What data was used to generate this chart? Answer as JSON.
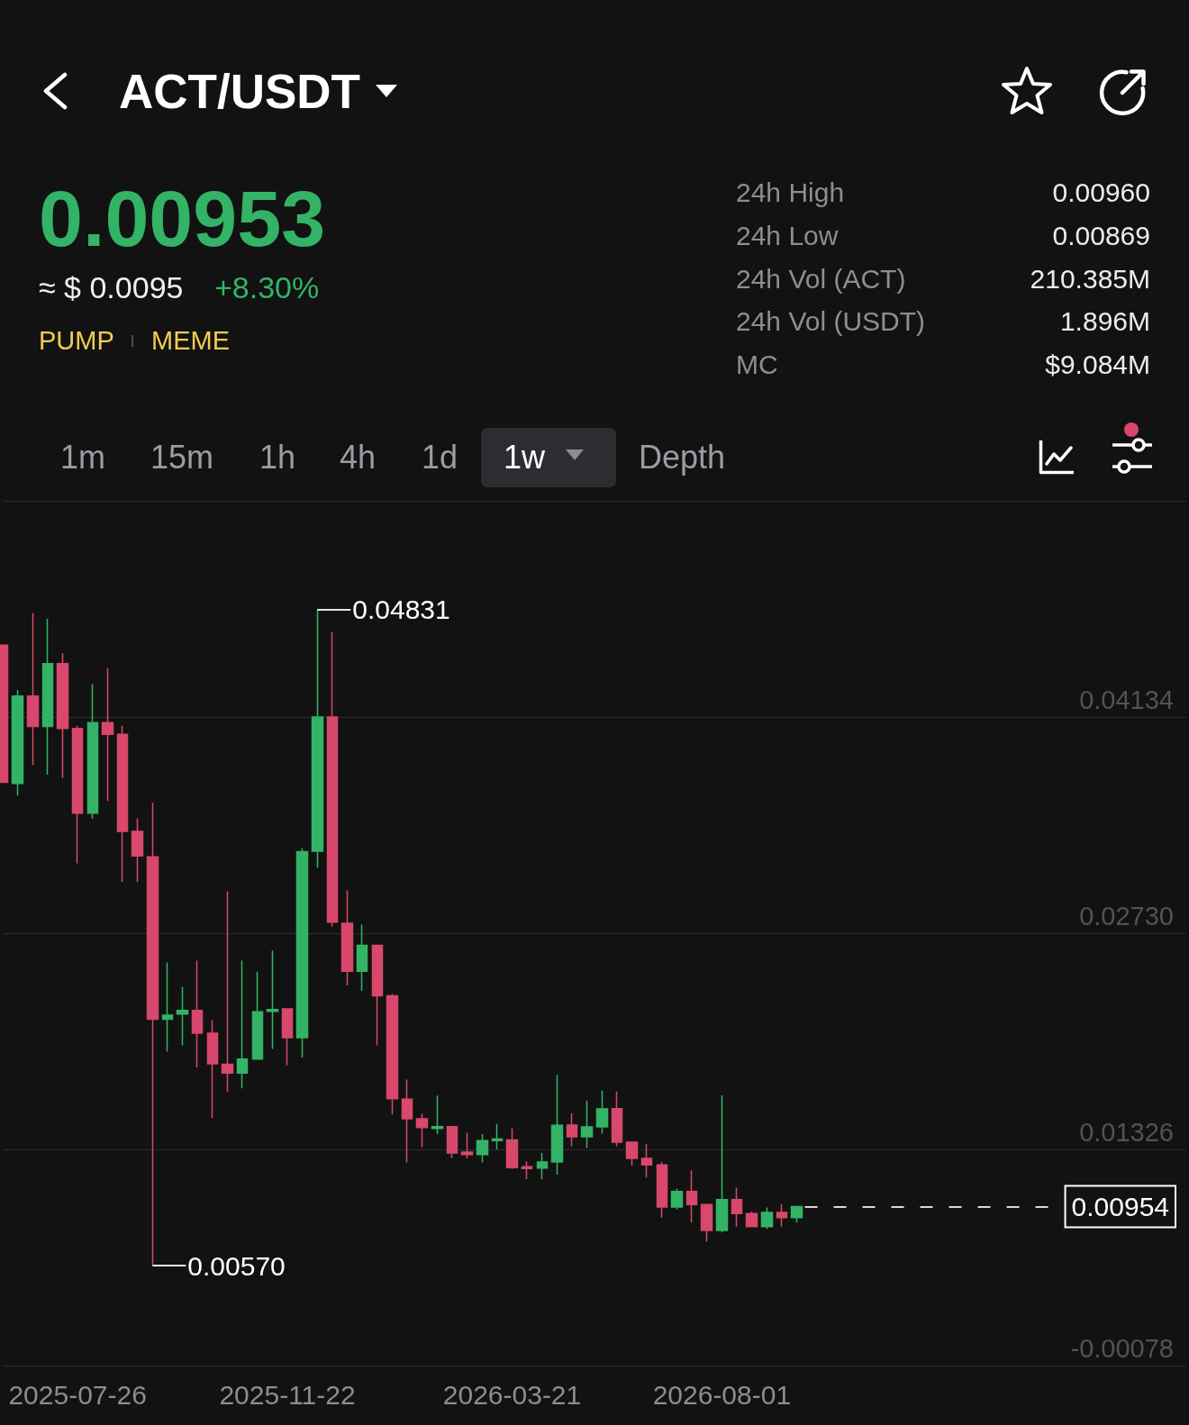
{
  "chart_data": {
    "type": "candlestick",
    "title": "ACT/USDT",
    "annotations": [
      "0.00953",
      "≈ $ 0.0095",
      "+8.30%",
      "PUMP",
      "MEME",
      "24h High",
      "0.00960",
      "24h Low",
      "0.00869",
      "24h Vol (ACT)",
      "210.385M",
      "24h Vol (USDT)",
      "1.896M",
      "MC",
      "$9.084M",
      "1m",
      "15m",
      "1h",
      "4h",
      "1d",
      "1w",
      "Depth",
      "0.04831",
      "0.00570"
    ],
    "categories": [
      null,
      null,
      null,
      null,
      null,
      "2025-07-26",
      null,
      null,
      null,
      null,
      null,
      null,
      null,
      null,
      null,
      null,
      null,
      null,
      null,
      "2025-11-22",
      null,
      null,
      null,
      null,
      null,
      null,
      null,
      null,
      null,
      null,
      null,
      null,
      null,
      null,
      "2026-03-21",
      null,
      null,
      null,
      null,
      null,
      null,
      null,
      null,
      null,
      null,
      null,
      null,
      null,
      "2026-08-01",
      null,
      null,
      null,
      null,
      null,
      null,
      null,
      null,
      null,
      null,
      null,
      null,
      null,
      null,
      null,
      null,
      null,
      null,
      null,
      null,
      null,
      null,
      null,
      null,
      null,
      null,
      null,
      null,
      null,
      null,
      null
    ],
    "ohlc": [
      [
        0.046,
        0.046,
        0.0371,
        0.0371
      ],
      [
        0.03703,
        0.0431,
        0.03623,
        0.0427
      ],
      [
        0.0427,
        0.04809,
        0.03822,
        0.04072
      ],
      [
        0.04072,
        0.04772,
        0.0376,
        0.0448
      ],
      [
        0.0448,
        0.04548,
        0.03737,
        0.0406
      ],
      [
        0.0406,
        0.04077,
        0.03184,
        0.0351
      ],
      [
        0.0351,
        0.04347,
        0.03473,
        0.04097
      ],
      [
        0.04097,
        0.04452,
        0.03589,
        0.04021
      ],
      [
        0.04021,
        0.04077,
        0.03062,
        0.03391
      ],
      [
        0.03391,
        0.03476,
        0.03062,
        0.03232
      ],
      [
        0.03226,
        0.03578,
        0.0057,
        0.02171
      ],
      [
        0.02171,
        0.0254,
        0.01961,
        0.02197
      ],
      [
        0.02205,
        0.02381,
        0.02001,
        0.02228
      ],
      [
        0.02228,
        0.02551,
        0.01859,
        0.0208
      ],
      [
        0.0208,
        0.02166,
        0.0153,
        0.01882
      ],
      [
        0.01879,
        0.03,
        0.017,
        0.01822
      ],
      [
        0.01822,
        0.02551,
        0.01723,
        0.01913
      ],
      [
        0.01913,
        0.0248,
        0.01913,
        0.02219
      ],
      [
        0.02222,
        0.02617,
        0.01978,
        0.02234
      ],
      [
        0.02239,
        0.02239,
        0.01871,
        0.02052
      ],
      [
        0.02052,
        0.03283,
        0.01922,
        0.0326
      ],
      [
        0.03263,
        0.04831,
        0.03155,
        0.04134
      ],
      [
        0.04134,
        0.04687,
        0.02773,
        0.02801
      ],
      [
        0.02795,
        0.03008,
        0.0239,
        0.02483
      ],
      [
        0.02483,
        0.02787,
        0.02356,
        0.02651
      ],
      [
        0.02651,
        0.02651,
        0.02001,
        0.02324
      ],
      [
        0.02324,
        0.02333,
        0.01553,
        0.01655
      ],
      [
        0.01652,
        0.0178,
        0.01241,
        0.01525
      ],
      [
        0.01525,
        0.01559,
        0.0134,
        0.01468
      ],
      [
        0.01462,
        0.01675,
        0.01425,
        0.01473
      ],
      [
        0.01473,
        0.01473,
        0.01269,
        0.01303
      ],
      [
        0.01309,
        0.01434,
        0.01269,
        0.01292
      ],
      [
        0.01292,
        0.01425,
        0.01241,
        0.01383
      ],
      [
        0.01383,
        0.01491,
        0.01326,
        0.01394
      ],
      [
        0.01388,
        0.01462,
        0.01199,
        0.01207
      ],
      [
        0.01213,
        0.01249,
        0.01133,
        0.01201
      ],
      [
        0.01205,
        0.01303,
        0.01131,
        0.01244
      ],
      [
        0.01244,
        0.0181,
        0.01162,
        0.01482
      ],
      [
        0.01484,
        0.0156,
        0.01346,
        0.01408
      ],
      [
        0.01408,
        0.01644,
        0.01336,
        0.01472
      ],
      [
        0.01472,
        0.01708,
        0.01429,
        0.01589
      ],
      [
        0.01591,
        0.01702,
        0.01346,
        0.01373
      ],
      [
        0.01373,
        0.01373,
        0.01221,
        0.01268
      ],
      [
        0.01268,
        0.01361,
        0.01143,
        0.01225
      ],
      [
        0.01225,
        0.01244,
        0.00883,
        0.00952
      ],
      [
        0.00952,
        0.01072,
        0.00936,
        0.01053
      ],
      [
        0.01053,
        0.0119,
        0.0085,
        0.00967
      ],
      [
        0.00967,
        0.00967,
        0.00727,
        0.008
      ],
      [
        0.008,
        0.01677,
        0.00786,
        0.01
      ],
      [
        0.01,
        0.01078,
        0.00825,
        0.00909
      ],
      [
        0.00909,
        0.00922,
        0.00825,
        0.00825
      ],
      [
        0.00825,
        0.00948,
        0.00809,
        0.00917
      ],
      [
        0.00917,
        0.00971,
        0.00825,
        0.00883
      ],
      [
        0.00883,
        0.00954,
        0.0085,
        0.00954
      ],
      null,
      null,
      null,
      null,
      null,
      null,
      null,
      null,
      null,
      null,
      null,
      null,
      null,
      null,
      null,
      null,
      null,
      null,
      null,
      null,
      null,
      null,
      null,
      null,
      null,
      null
    ],
    "colors": [
      "#d8476c",
      "#33b366",
      "#d8476c",
      "#33b366",
      "#d8476c",
      "#d8476c",
      "#33b366",
      "#d8476c",
      "#d8476c",
      "#d8476c",
      "#d8476c",
      "#33b366",
      "#33b366",
      "#d8476c",
      "#d8476c",
      "#d8476c",
      "#33b366",
      "#33b366",
      "#33b366",
      "#d8476c",
      "#33b366",
      "#33b366",
      "#d8476c",
      "#d8476c",
      "#33b366",
      "#d8476c",
      "#d8476c",
      "#d8476c",
      "#d8476c",
      "#33b366",
      "#d8476c",
      "#d8476c",
      "#33b366",
      "#33b366",
      "#d8476c",
      "#d8476c",
      "#33b366",
      "#33b366",
      "#d8476c",
      "#33b366",
      "#33b366",
      "#d8476c",
      "#d8476c",
      "#d8476c",
      "#d8476c",
      "#33b366",
      "#d8476c",
      "#d8476c",
      "#33b366",
      "#d8476c",
      "#d8476c",
      "#33b366",
      "#d8476c",
      "#33b366",
      null,
      null,
      null,
      null,
      null,
      null,
      null,
      null,
      null,
      null,
      null,
      null,
      null,
      null,
      null,
      null,
      null,
      null,
      null,
      null,
      null,
      null,
      null,
      null,
      null,
      null
    ],
    "ylim": [
      -0.00078,
      0.05538
    ],
    "yticks": [
      -0.00078,
      0.01326,
      {
        "value": 0.0273,
        "label": "0.02730"
      },
      0.04134,
      {
        "value": 0.05538,
        "label": null
      }
    ],
    "grid": "y",
    "ref_lines": [
      {
        "axis": "y",
        "value": 0.00954,
        "label": "0.00954",
        "line_style": "dashed",
        "color": "#d9d9d9"
      }
    ]
  }
}
